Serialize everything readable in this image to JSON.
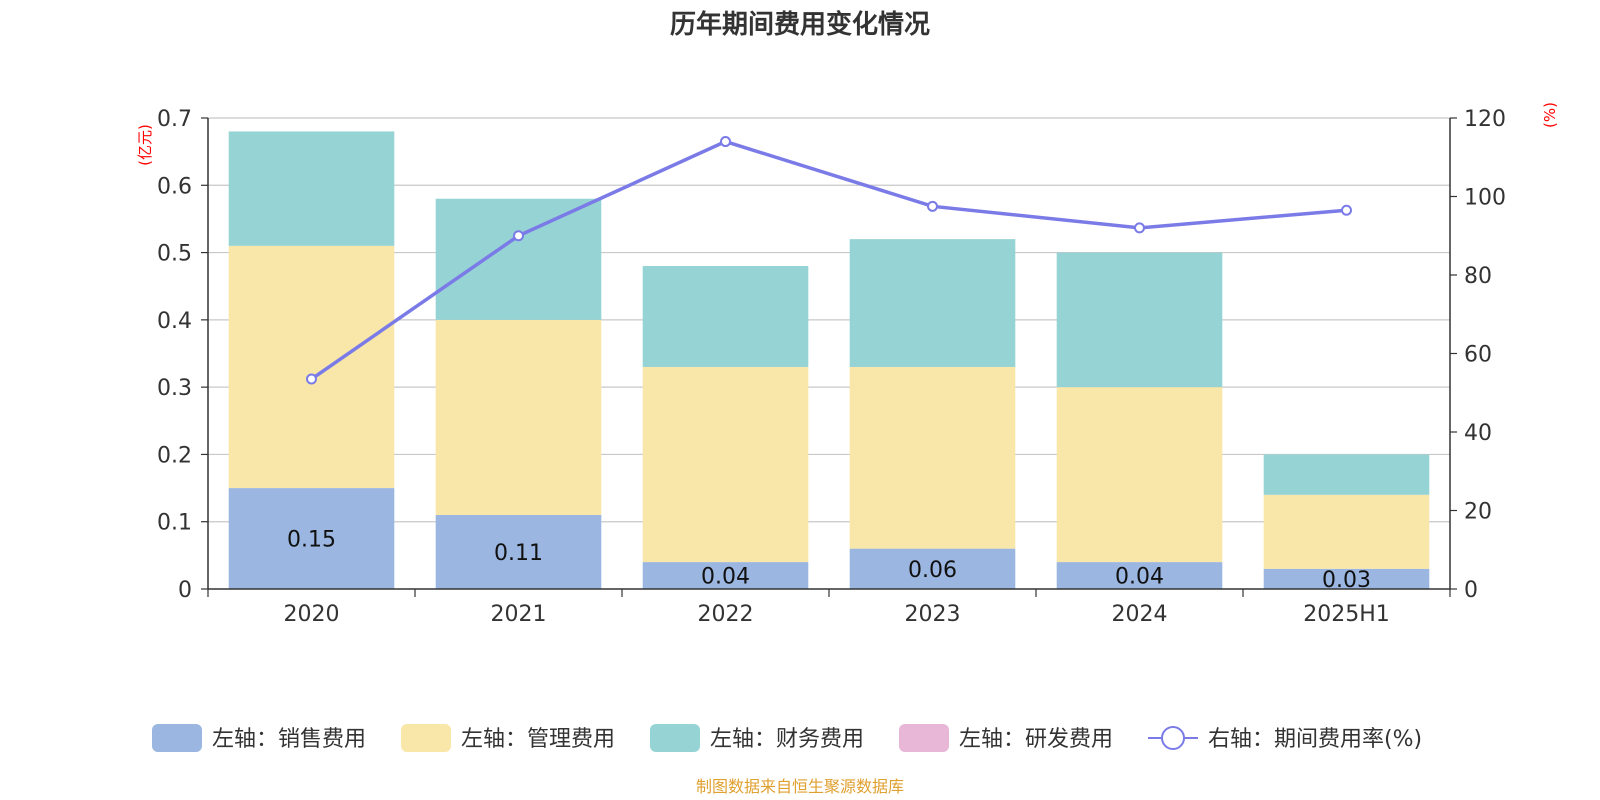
{
  "chart_data": {
    "type": "bar",
    "stacked": true,
    "title": "历年期间费用变化情况",
    "categories": [
      "2020",
      "2021",
      "2022",
      "2023",
      "2024",
      "2025H1"
    ],
    "left_axis": {
      "unit_label": "(亿元)",
      "ylim": [
        0,
        0.7
      ],
      "ticks": [
        "0",
        "0.1",
        "0.2",
        "0.3",
        "0.4",
        "0.5",
        "0.6",
        "0.7"
      ],
      "tick_values": [
        0,
        0.1,
        0.2,
        0.3,
        0.4,
        0.5,
        0.6,
        0.7
      ]
    },
    "right_axis": {
      "unit_label": "(%)",
      "ylim": [
        0,
        120
      ],
      "ticks": [
        "0",
        "20",
        "40",
        "60",
        "80",
        "100",
        "120"
      ],
      "tick_values": [
        0,
        20,
        40,
        60,
        80,
        100,
        120
      ]
    },
    "series": [
      {
        "name": "左轴：销售费用",
        "kind": "bar",
        "color": "#9bb6e0",
        "values": [
          0.15,
          0.11,
          0.04,
          0.06,
          0.04,
          0.03
        ],
        "labels": [
          "0.15",
          "0.11",
          "0.04",
          "0.06",
          "0.04",
          "0.03"
        ]
      },
      {
        "name": "左轴：管理费用",
        "kind": "bar",
        "color": "#f8e7a8",
        "values": [
          0.36,
          0.29,
          0.29,
          0.27,
          0.26,
          0.11
        ]
      },
      {
        "name": "左轴：财务费用",
        "kind": "bar",
        "color": "#96d3d4",
        "values": [
          0.17,
          0.18,
          0.15,
          0.19,
          0.2,
          0.06
        ]
      },
      {
        "name": "左轴：研发费用",
        "kind": "bar",
        "color": "#e8b7d8",
        "values": [
          0,
          0,
          0,
          0,
          0,
          0
        ]
      },
      {
        "name": "右轴：期间费用率(%)",
        "kind": "line",
        "axis": "right",
        "color": "#7b7be8",
        "values": [
          53.5,
          90,
          114,
          97.5,
          92,
          96.5
        ]
      }
    ],
    "grid": true,
    "legend_position": "bottom"
  },
  "unit_color": "#ff0000",
  "source_text": "制图数据来自恒生聚源数据库",
  "source_color": "#e0a030"
}
